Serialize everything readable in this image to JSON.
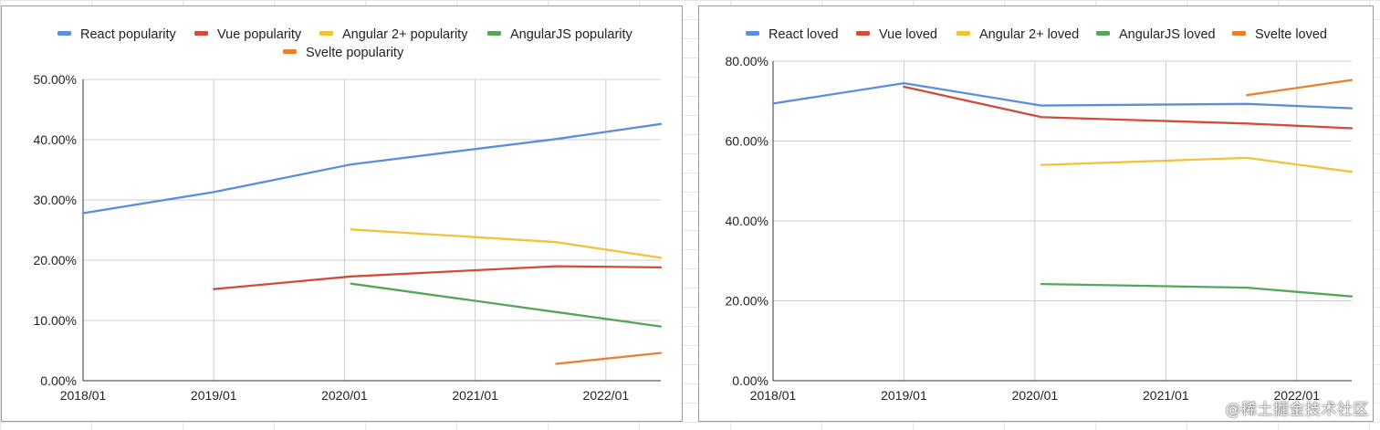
{
  "chart_data": [
    {
      "type": "line",
      "title": "",
      "xlabel": "",
      "ylabel": "",
      "x_ticks": [
        "2018/01",
        "2019/01",
        "2020/01",
        "2021/01",
        "2022/01"
      ],
      "y_ticks": [
        "0.00%",
        "10.00%",
        "20.00%",
        "30.00%",
        "40.00%",
        "50.00%"
      ],
      "ylim": [
        0,
        50
      ],
      "xlim": [
        2018.0,
        2022.42
      ],
      "legend_position": "top",
      "grid": true,
      "series": [
        {
          "name": "React popularity",
          "color": "#5b8ede",
          "x": [
            2018.0,
            2019.0,
            2020.05,
            2021.62,
            2022.42
          ],
          "values": [
            27.8,
            31.3,
            35.9,
            40.1,
            42.6
          ]
        },
        {
          "name": "Vue popularity",
          "color": "#d04c3d",
          "x": [
            2019.0,
            2020.05,
            2021.62,
            2022.42
          ],
          "values": [
            15.2,
            17.3,
            19.0,
            18.8
          ]
        },
        {
          "name": "Angular 2+ popularity",
          "color": "#f0c33c",
          "x": [
            2020.05,
            2021.62,
            2022.42
          ],
          "values": [
            25.1,
            23.0,
            20.4
          ]
        },
        {
          "name": "AngularJS popularity",
          "color": "#55a65a",
          "x": [
            2020.05,
            2021.62,
            2022.42
          ],
          "values": [
            16.1,
            11.4,
            9.0
          ]
        },
        {
          "name": "Svelte popularity",
          "color": "#ea7f30",
          "x": [
            2021.62,
            2022.42
          ],
          "values": [
            2.8,
            4.6
          ]
        }
      ]
    },
    {
      "type": "line",
      "title": "",
      "xlabel": "",
      "ylabel": "",
      "x_ticks": [
        "2018/01",
        "2019/01",
        "2020/01",
        "2021/01",
        "2022/01"
      ],
      "y_ticks": [
        "0.00%",
        "20.00%",
        "40.00%",
        "60.00%",
        "80.00%"
      ],
      "ylim": [
        0,
        80
      ],
      "xlim": [
        2018.0,
        2022.42
      ],
      "legend_position": "top",
      "grid": true,
      "series": [
        {
          "name": "React loved",
          "color": "#5b8ede",
          "x": [
            2018.0,
            2019.0,
            2020.05,
            2021.62,
            2022.42
          ],
          "values": [
            69.4,
            74.5,
            68.9,
            69.3,
            68.2
          ]
        },
        {
          "name": "Vue loved",
          "color": "#d04c3d",
          "x": [
            2019.0,
            2020.05,
            2021.62,
            2022.42
          ],
          "values": [
            73.6,
            66.0,
            64.4,
            63.2
          ]
        },
        {
          "name": "Angular 2+ loved",
          "color": "#f0c33c",
          "x": [
            2020.05,
            2021.62,
            2022.42
          ],
          "values": [
            54.0,
            55.8,
            52.3
          ]
        },
        {
          "name": "AngularJS loved",
          "color": "#55a65a",
          "x": [
            2020.05,
            2021.62,
            2022.42
          ],
          "values": [
            24.2,
            23.3,
            21.1
          ]
        },
        {
          "name": "Svelte loved",
          "color": "#ea7f30",
          "x": [
            2021.62,
            2022.42
          ],
          "values": [
            71.5,
            75.3
          ]
        }
      ]
    }
  ],
  "watermark": "@稀土掘金技术社区"
}
